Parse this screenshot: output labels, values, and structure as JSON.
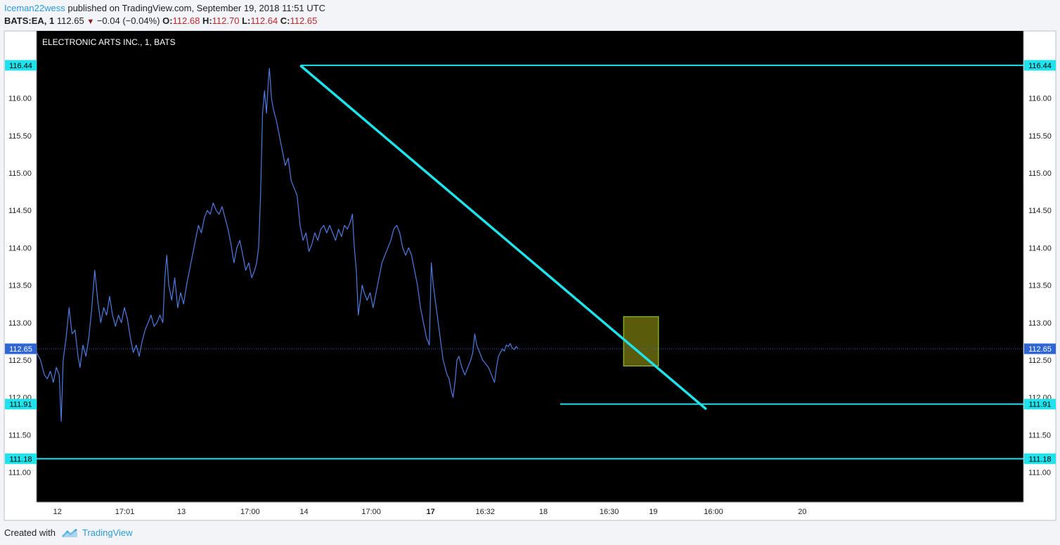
{
  "header": {
    "username": "Iceman22wess",
    "published_text": "published on TradingView.com, September 19, 2018 11:51 UTC",
    "symbol": "BATS:EA, 1",
    "last": "112.65",
    "change": "−0.04 (−0.04%)",
    "o_label": "O:",
    "o_val": "112.68",
    "h_label": "H:",
    "h_val": "112.70",
    "l_label": "L:",
    "l_val": "112.64",
    "c_label": "C:",
    "c_val": "112.65"
  },
  "footer": {
    "created_with": "Created with",
    "brand": "TradingView"
  },
  "colors": {
    "price_line": "#4f7be0",
    "drawing": "#1fe3ec",
    "box_fill": "#6b6b0e",
    "box_stroke": "#9fdc3a",
    "last_badge": "#2f66d3",
    "pane": "#000000"
  },
  "chart_data": {
    "type": "line",
    "title": "ELECTRONIC ARTS INC., 1, BATS",
    "ylim": [
      110.6,
      116.9
    ],
    "y_ticks": [
      "116.00",
      "115.50",
      "115.00",
      "114.50",
      "114.00",
      "113.50",
      "113.00",
      "112.50",
      "112.00",
      "111.50",
      "111.00"
    ],
    "x_ticks": [
      {
        "label": "12",
        "pos": 0.0212,
        "bold": false
      },
      {
        "label": "17:01",
        "pos": 0.0894,
        "bold": false
      },
      {
        "label": "13",
        "pos": 0.1468,
        "bold": false
      },
      {
        "label": "17:00",
        "pos": 0.2164,
        "bold": false
      },
      {
        "label": "14",
        "pos": 0.271,
        "bold": false
      },
      {
        "label": "17:00",
        "pos": 0.3391,
        "bold": false
      },
      {
        "label": "17",
        "pos": 0.3993,
        "bold": true
      },
      {
        "label": "16:32",
        "pos": 0.4546,
        "bold": false
      },
      {
        "label": "18",
        "pos": 0.5135,
        "bold": false
      },
      {
        "label": "16:30",
        "pos": 0.5802,
        "bold": false
      },
      {
        "label": "19",
        "pos": 0.6249,
        "bold": false
      },
      {
        "label": "16:00",
        "pos": 0.6859,
        "bold": false
      },
      {
        "label": "20",
        "pos": 0.7759,
        "bold": false
      }
    ],
    "levels": [
      {
        "value": 116.44,
        "label": "116.44",
        "x_start": 0.2681
      },
      {
        "value": 111.91,
        "label": "111.91",
        "x_start": 0.5306
      },
      {
        "value": 111.18,
        "label": "111.18",
        "x_start": 0.0
      }
    ],
    "last_price": {
      "value": 112.65,
      "label": "112.65"
    },
    "trendline": {
      "x1": 0.2681,
      "y1": 116.43,
      "x2": 0.6779,
      "y2": 111.85
    },
    "box": {
      "x1": 0.5948,
      "x2": 0.6302,
      "y1": 113.08,
      "y2": 112.42
    },
    "series": [
      {
        "name": "EA",
        "points": [
          [
            0.0,
            112.6
          ],
          [
            0.004,
            112.5
          ],
          [
            0.008,
            112.3
          ],
          [
            0.011,
            112.25
          ],
          [
            0.014,
            112.35
          ],
          [
            0.017,
            112.2
          ],
          [
            0.02,
            112.4
          ],
          [
            0.023,
            112.3
          ],
          [
            0.025,
            111.68
          ],
          [
            0.027,
            112.5
          ],
          [
            0.03,
            112.8
          ],
          [
            0.033,
            113.2
          ],
          [
            0.036,
            112.85
          ],
          [
            0.039,
            112.9
          ],
          [
            0.042,
            112.55
          ],
          [
            0.044,
            112.4
          ],
          [
            0.047,
            112.7
          ],
          [
            0.05,
            112.55
          ],
          [
            0.053,
            112.8
          ],
          [
            0.056,
            113.2
          ],
          [
            0.059,
            113.7
          ],
          [
            0.062,
            113.3
          ],
          [
            0.065,
            113.0
          ],
          [
            0.068,
            113.2
          ],
          [
            0.071,
            113.1
          ],
          [
            0.074,
            113.35
          ],
          [
            0.077,
            113.1
          ],
          [
            0.08,
            112.95
          ],
          [
            0.083,
            113.1
          ],
          [
            0.086,
            113.0
          ],
          [
            0.089,
            113.2
          ],
          [
            0.092,
            113.05
          ],
          [
            0.095,
            112.8
          ],
          [
            0.098,
            112.6
          ],
          [
            0.101,
            112.7
          ],
          [
            0.104,
            112.55
          ],
          [
            0.107,
            112.75
          ],
          [
            0.11,
            112.9
          ],
          [
            0.113,
            113.0
          ],
          [
            0.116,
            113.1
          ],
          [
            0.119,
            112.95
          ],
          [
            0.122,
            113.0
          ],
          [
            0.125,
            113.1
          ],
          [
            0.128,
            113.0
          ],
          [
            0.13,
            113.6
          ],
          [
            0.132,
            113.9
          ],
          [
            0.134,
            113.5
          ],
          [
            0.137,
            113.3
          ],
          [
            0.14,
            113.6
          ],
          [
            0.143,
            113.2
          ],
          [
            0.146,
            113.4
          ],
          [
            0.149,
            113.25
          ],
          [
            0.152,
            113.5
          ],
          [
            0.155,
            113.7
          ],
          [
            0.158,
            113.9
          ],
          [
            0.161,
            114.1
          ],
          [
            0.164,
            114.3
          ],
          [
            0.167,
            114.2
          ],
          [
            0.17,
            114.4
          ],
          [
            0.173,
            114.5
          ],
          [
            0.176,
            114.45
          ],
          [
            0.179,
            114.6
          ],
          [
            0.182,
            114.5
          ],
          [
            0.185,
            114.45
          ],
          [
            0.188,
            114.55
          ],
          [
            0.191,
            114.4
          ],
          [
            0.194,
            114.25
          ],
          [
            0.197,
            114.05
          ],
          [
            0.2,
            113.8
          ],
          [
            0.203,
            114.0
          ],
          [
            0.206,
            114.1
          ],
          [
            0.209,
            113.9
          ],
          [
            0.212,
            113.7
          ],
          [
            0.215,
            113.8
          ],
          [
            0.218,
            113.6
          ],
          [
            0.221,
            113.7
          ],
          [
            0.223,
            113.8
          ],
          [
            0.225,
            114.0
          ],
          [
            0.227,
            114.7
          ],
          [
            0.229,
            115.8
          ],
          [
            0.231,
            116.1
          ],
          [
            0.233,
            115.8
          ],
          [
            0.235,
            116.25
          ],
          [
            0.236,
            116.4
          ],
          [
            0.238,
            116.0
          ],
          [
            0.24,
            115.85
          ],
          [
            0.243,
            115.7
          ],
          [
            0.246,
            115.5
          ],
          [
            0.249,
            115.3
          ],
          [
            0.252,
            115.1
          ],
          [
            0.255,
            115.2
          ],
          [
            0.258,
            114.9
          ],
          [
            0.261,
            114.8
          ],
          [
            0.264,
            114.7
          ],
          [
            0.267,
            114.3
          ],
          [
            0.27,
            114.1
          ],
          [
            0.273,
            114.2
          ],
          [
            0.276,
            113.95
          ],
          [
            0.279,
            114.05
          ],
          [
            0.282,
            114.2
          ],
          [
            0.285,
            114.1
          ],
          [
            0.288,
            114.25
          ],
          [
            0.291,
            114.3
          ],
          [
            0.294,
            114.2
          ],
          [
            0.297,
            114.3
          ],
          [
            0.3,
            114.2
          ],
          [
            0.303,
            114.1
          ],
          [
            0.306,
            114.25
          ],
          [
            0.309,
            114.15
          ],
          [
            0.312,
            114.3
          ],
          [
            0.315,
            114.25
          ],
          [
            0.318,
            114.35
          ],
          [
            0.32,
            114.45
          ],
          [
            0.322,
            114.0
          ],
          [
            0.324,
            113.7
          ],
          [
            0.326,
            113.1
          ],
          [
            0.328,
            113.3
          ],
          [
            0.33,
            113.5
          ],
          [
            0.332,
            113.4
          ],
          [
            0.335,
            113.3
          ],
          [
            0.338,
            113.4
          ],
          [
            0.341,
            113.2
          ],
          [
            0.344,
            113.4
          ],
          [
            0.347,
            113.6
          ],
          [
            0.35,
            113.8
          ],
          [
            0.353,
            113.9
          ],
          [
            0.356,
            114.0
          ],
          [
            0.359,
            114.1
          ],
          [
            0.362,
            114.25
          ],
          [
            0.365,
            114.3
          ],
          [
            0.368,
            114.2
          ],
          [
            0.371,
            114.0
          ],
          [
            0.374,
            113.9
          ],
          [
            0.377,
            114.0
          ],
          [
            0.38,
            113.9
          ],
          [
            0.383,
            113.7
          ],
          [
            0.386,
            113.5
          ],
          [
            0.389,
            113.2
          ],
          [
            0.392,
            113.0
          ],
          [
            0.395,
            112.8
          ],
          [
            0.398,
            112.7
          ],
          [
            0.4,
            113.8
          ],
          [
            0.402,
            113.5
          ],
          [
            0.404,
            113.3
          ],
          [
            0.406,
            113.1
          ],
          [
            0.408,
            112.9
          ],
          [
            0.41,
            112.7
          ],
          [
            0.412,
            112.5
          ],
          [
            0.414,
            112.4
          ],
          [
            0.416,
            112.3
          ],
          [
            0.418,
            112.25
          ],
          [
            0.42,
            112.1
          ],
          [
            0.422,
            112.0
          ],
          [
            0.424,
            112.2
          ],
          [
            0.426,
            112.5
          ],
          [
            0.428,
            112.55
          ],
          [
            0.431,
            112.4
          ],
          [
            0.434,
            112.3
          ],
          [
            0.437,
            112.4
          ],
          [
            0.44,
            112.5
          ],
          [
            0.442,
            112.6
          ],
          [
            0.444,
            112.85
          ],
          [
            0.446,
            112.7
          ],
          [
            0.449,
            112.6
          ],
          [
            0.452,
            112.5
          ],
          [
            0.455,
            112.45
          ],
          [
            0.458,
            112.4
          ],
          [
            0.461,
            112.3
          ],
          [
            0.464,
            112.2
          ],
          [
            0.466,
            112.4
          ],
          [
            0.468,
            112.55
          ],
          [
            0.47,
            112.6
          ],
          [
            0.472,
            112.65
          ],
          [
            0.474,
            112.62
          ],
          [
            0.476,
            112.7
          ],
          [
            0.478,
            112.68
          ],
          [
            0.48,
            112.72
          ],
          [
            0.482,
            112.66
          ],
          [
            0.484,
            112.64
          ],
          [
            0.486,
            112.68
          ],
          [
            0.488,
            112.65
          ]
        ]
      }
    ]
  }
}
